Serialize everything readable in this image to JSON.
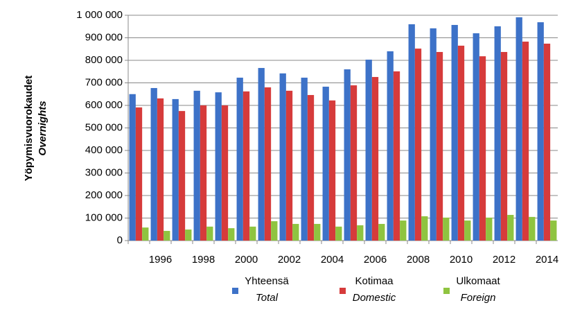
{
  "chart_data": {
    "type": "bar",
    "y_label": "Yöpymisvuorokaudet",
    "y_label_sub": "Overnights",
    "categories": [
      null,
      "1996",
      null,
      "1998",
      null,
      "2000",
      null,
      "2002",
      null,
      "2004",
      null,
      "2006",
      null,
      "2008",
      null,
      "2010",
      null,
      "2012",
      null,
      "2014"
    ],
    "series": [
      {
        "name": "Yhteensä",
        "subname": "Total",
        "color": "#3d72c8",
        "values": [
          650000,
          677000,
          628000,
          665000,
          658000,
          723000,
          766000,
          742000,
          723000,
          683000,
          760000,
          803000,
          840000,
          960000,
          942000,
          957000,
          920000,
          951000,
          991000,
          969000
        ]
      },
      {
        "name": "Kotimaa",
        "subname": "Domestic",
        "color": "#d63b3b",
        "values": [
          591000,
          631000,
          575000,
          600000,
          600000,
          662000,
          680000,
          665000,
          646000,
          622000,
          689000,
          726000,
          751000,
          852000,
          837000,
          865000,
          818000,
          837000,
          883000,
          874000
        ]
      },
      {
        "name": "Ulkomaat",
        "subname": "Foreign",
        "color": "#8fc440",
        "values": [
          58000,
          43000,
          49000,
          62000,
          55000,
          62000,
          86000,
          74000,
          74000,
          62000,
          68000,
          74000,
          89000,
          108000,
          102000,
          89000,
          102000,
          114000,
          105000,
          89000
        ]
      }
    ],
    "ylim": [
      0,
      1000000
    ],
    "yticks": [
      0,
      {
        "value": 100000,
        "label": "100 000"
      },
      {
        "value": 200000,
        "label": "200 000"
      },
      {
        "value": 300000,
        "label": "300 000"
      },
      {
        "value": 400000,
        "label": "400 000"
      },
      {
        "value": 500000,
        "label": "500 000"
      },
      {
        "value": 600000,
        "label": "600 000"
      },
      {
        "value": 700000,
        "label": "700 000"
      },
      {
        "value": 800000,
        "label": "800 000"
      },
      {
        "value": 900000,
        "label": "900 000"
      },
      {
        "value": 1000000,
        "label": "1 000 000"
      }
    ],
    "grid": true
  }
}
